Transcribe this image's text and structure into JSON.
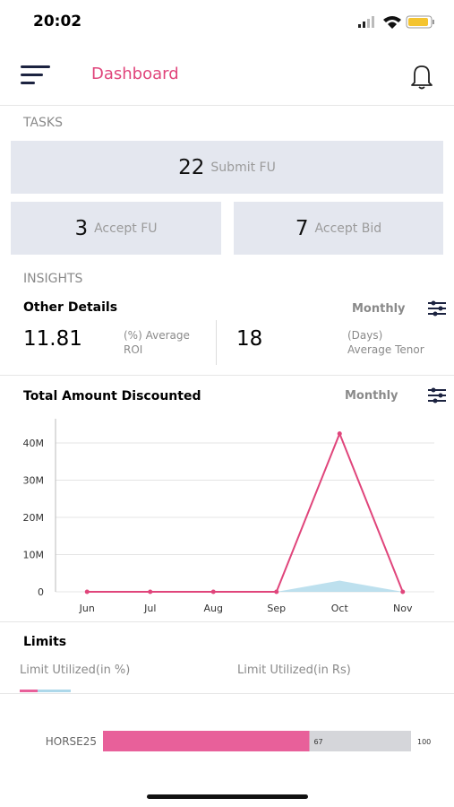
{
  "status_bar": {
    "time": "20:02"
  },
  "header": {
    "title": "Dashboard"
  },
  "tasks": {
    "heading": "TASKS",
    "items": [
      {
        "count": 22,
        "label": "Submit FU"
      },
      {
        "count": 3,
        "label": "Accept FU"
      },
      {
        "count": 7,
        "label": "Accept Bid"
      }
    ]
  },
  "insights": {
    "heading": "INSIGHTS",
    "other_details": {
      "title": "Other Details",
      "period": "Monthly",
      "metrics": [
        {
          "value": "11.81",
          "lines": [
            "(%) Average",
            "ROI"
          ]
        },
        {
          "value": "18",
          "lines": [
            "(Days)",
            "Average Tenor"
          ]
        }
      ]
    }
  },
  "chart_data": {
    "type": "line",
    "title": "Total Amount Discounted",
    "period": "Monthly",
    "categories": [
      "Jun",
      "Jul",
      "Aug",
      "Sep",
      "Oct",
      "Nov"
    ],
    "series": [
      {
        "color": "#add8ea",
        "fill": true,
        "values": [
          0,
          0,
          0,
          0,
          3000000,
          0
        ]
      },
      {
        "color": "#e0457b",
        "values": [
          0,
          0,
          0,
          0,
          42500000,
          0
        ]
      }
    ],
    "ylim": [
      0,
      46500000
    ],
    "yticks": [
      0,
      {
        "value": 10000000,
        "label": "10M"
      },
      {
        "value": 20000000,
        "label": "20M"
      },
      {
        "value": 30000000,
        "label": "30M"
      },
      {
        "value": 40000000,
        "label": "40M"
      }
    ],
    "grid": true
  },
  "limits": {
    "title": "Limits",
    "tabs": [
      "Limit Utilized(in %)",
      "Limit Utilized(in Rs)"
    ],
    "bars": [
      {
        "label": "HORSE25",
        "value": 67,
        "max": 100
      }
    ]
  }
}
